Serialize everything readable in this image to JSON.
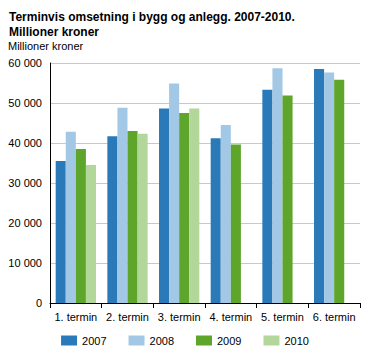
{
  "chart_data": {
    "type": "bar",
    "title": "Terminvis omsetning i bygg og anlegg. 2007-2010.\nMillioner kroner",
    "y_label": "Millioner kroner",
    "categories": [
      "1. termin",
      "2. termin",
      "3. termin",
      "4. termin",
      "5. termin",
      "6. termin"
    ],
    "series": [
      {
        "name": "2007",
        "color": "#2a7ab9",
        "values": [
          35500,
          41700,
          48600,
          41200,
          53300,
          58500
        ]
      },
      {
        "name": "2008",
        "color": "#a3c8e6",
        "values": [
          42800,
          48800,
          54900,
          44500,
          58700,
          57600
        ]
      },
      {
        "name": "2009",
        "color": "#5ea52c",
        "values": [
          38500,
          43000,
          47500,
          39600,
          51900,
          55800
        ]
      },
      {
        "name": "2010",
        "color": "#b3d79a",
        "values": [
          34500,
          42300,
          48600,
          null,
          null,
          null
        ]
      }
    ],
    "ylim": [
      0,
      60000
    ],
    "yticks": [
      0,
      {
        "value": 10000,
        "label": "10 000"
      },
      {
        "value": 20000,
        "label": "20 000"
      },
      {
        "value": 30000,
        "label": "30 000"
      },
      {
        "value": 40000,
        "label": "40 000"
      },
      {
        "value": 50000,
        "label": "50 000"
      },
      {
        "value": 60000,
        "label": "60 000"
      }
    ],
    "grid": true,
    "legend": "bottom"
  }
}
